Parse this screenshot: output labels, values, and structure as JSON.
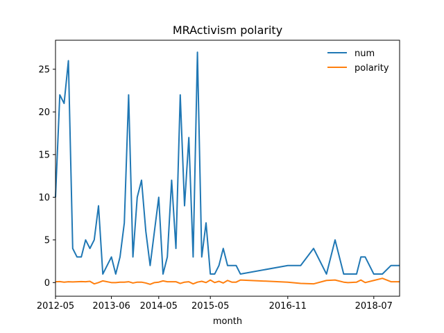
{
  "chart_data": {
    "type": "line",
    "title": "MRActivism polarity",
    "xlabel": "month",
    "ylabel": "",
    "x_tick_labels": [
      "2012-05",
      "2013-06",
      "2014-05",
      "2015-05",
      "2016-11",
      "2018-07"
    ],
    "y_ticks": [
      0,
      5,
      10,
      15,
      20,
      25
    ],
    "ylim": [
      -1.6,
      28.4
    ],
    "grid": false,
    "legend_position": "top-right",
    "x": [
      "2012-05",
      "2012-06",
      "2012-07",
      "2012-08",
      "2012-09",
      "2012-10",
      "2012-11",
      "2012-12",
      "2013-01",
      "2013-02",
      "2013-03",
      "2013-04",
      "2013-06",
      "2013-07",
      "2013-08",
      "2013-09",
      "2013-10",
      "2013-11",
      "2013-12",
      "2014-01",
      "2014-02",
      "2014-03",
      "2014-04",
      "2014-05",
      "2014-06",
      "2014-07",
      "2014-08",
      "2014-09",
      "2014-10",
      "2014-11",
      "2014-12",
      "2015-01",
      "2015-02",
      "2015-03",
      "2015-04",
      "2015-05",
      "2015-06",
      "2015-07",
      "2015-08",
      "2015-09",
      "2015-10",
      "2015-11",
      "2015-12",
      "2016-11",
      "2017-02",
      "2017-05",
      "2017-08",
      "2017-10",
      "2017-12",
      "2018-01",
      "2018-03",
      "2018-04",
      "2018-05",
      "2018-07",
      "2018-09",
      "2018-11",
      "2019-01"
    ],
    "series": [
      {
        "name": "num",
        "color": "#1f77b4",
        "values": [
          10,
          22,
          21,
          26,
          4,
          3,
          3,
          5,
          4,
          5,
          9,
          1,
          3,
          1,
          3,
          7,
          22,
          3,
          10,
          12,
          6,
          2,
          6,
          10,
          1,
          3,
          12,
          4,
          22,
          9,
          17,
          3,
          27,
          3,
          7,
          1,
          1,
          2,
          4,
          2,
          2,
          2,
          1,
          2,
          2,
          4,
          1,
          5,
          1,
          1,
          1,
          3,
          3,
          1,
          1,
          2,
          2
        ]
      },
      {
        "name": "polarity",
        "color": "#ff7f0e",
        "values": [
          0.1,
          0.12,
          0.05,
          0.1,
          0.08,
          0.1,
          0.12,
          0.1,
          0.15,
          -0.15,
          0.0,
          0.2,
          0.0,
          0.0,
          0.05,
          0.05,
          0.1,
          -0.05,
          0.05,
          0.05,
          -0.05,
          -0.2,
          0.0,
          0.05,
          0.2,
          0.1,
          0.1,
          0.1,
          -0.1,
          0.05,
          0.1,
          -0.15,
          0.05,
          0.15,
          0.0,
          0.3,
          0.0,
          0.15,
          -0.05,
          0.25,
          0.05,
          0.05,
          0.3,
          0.05,
          -0.1,
          -0.15,
          0.25,
          0.3,
          0.05,
          0.0,
          0.05,
          0.3,
          0.0,
          0.25,
          0.5,
          0.1,
          0.1
        ]
      }
    ]
  }
}
